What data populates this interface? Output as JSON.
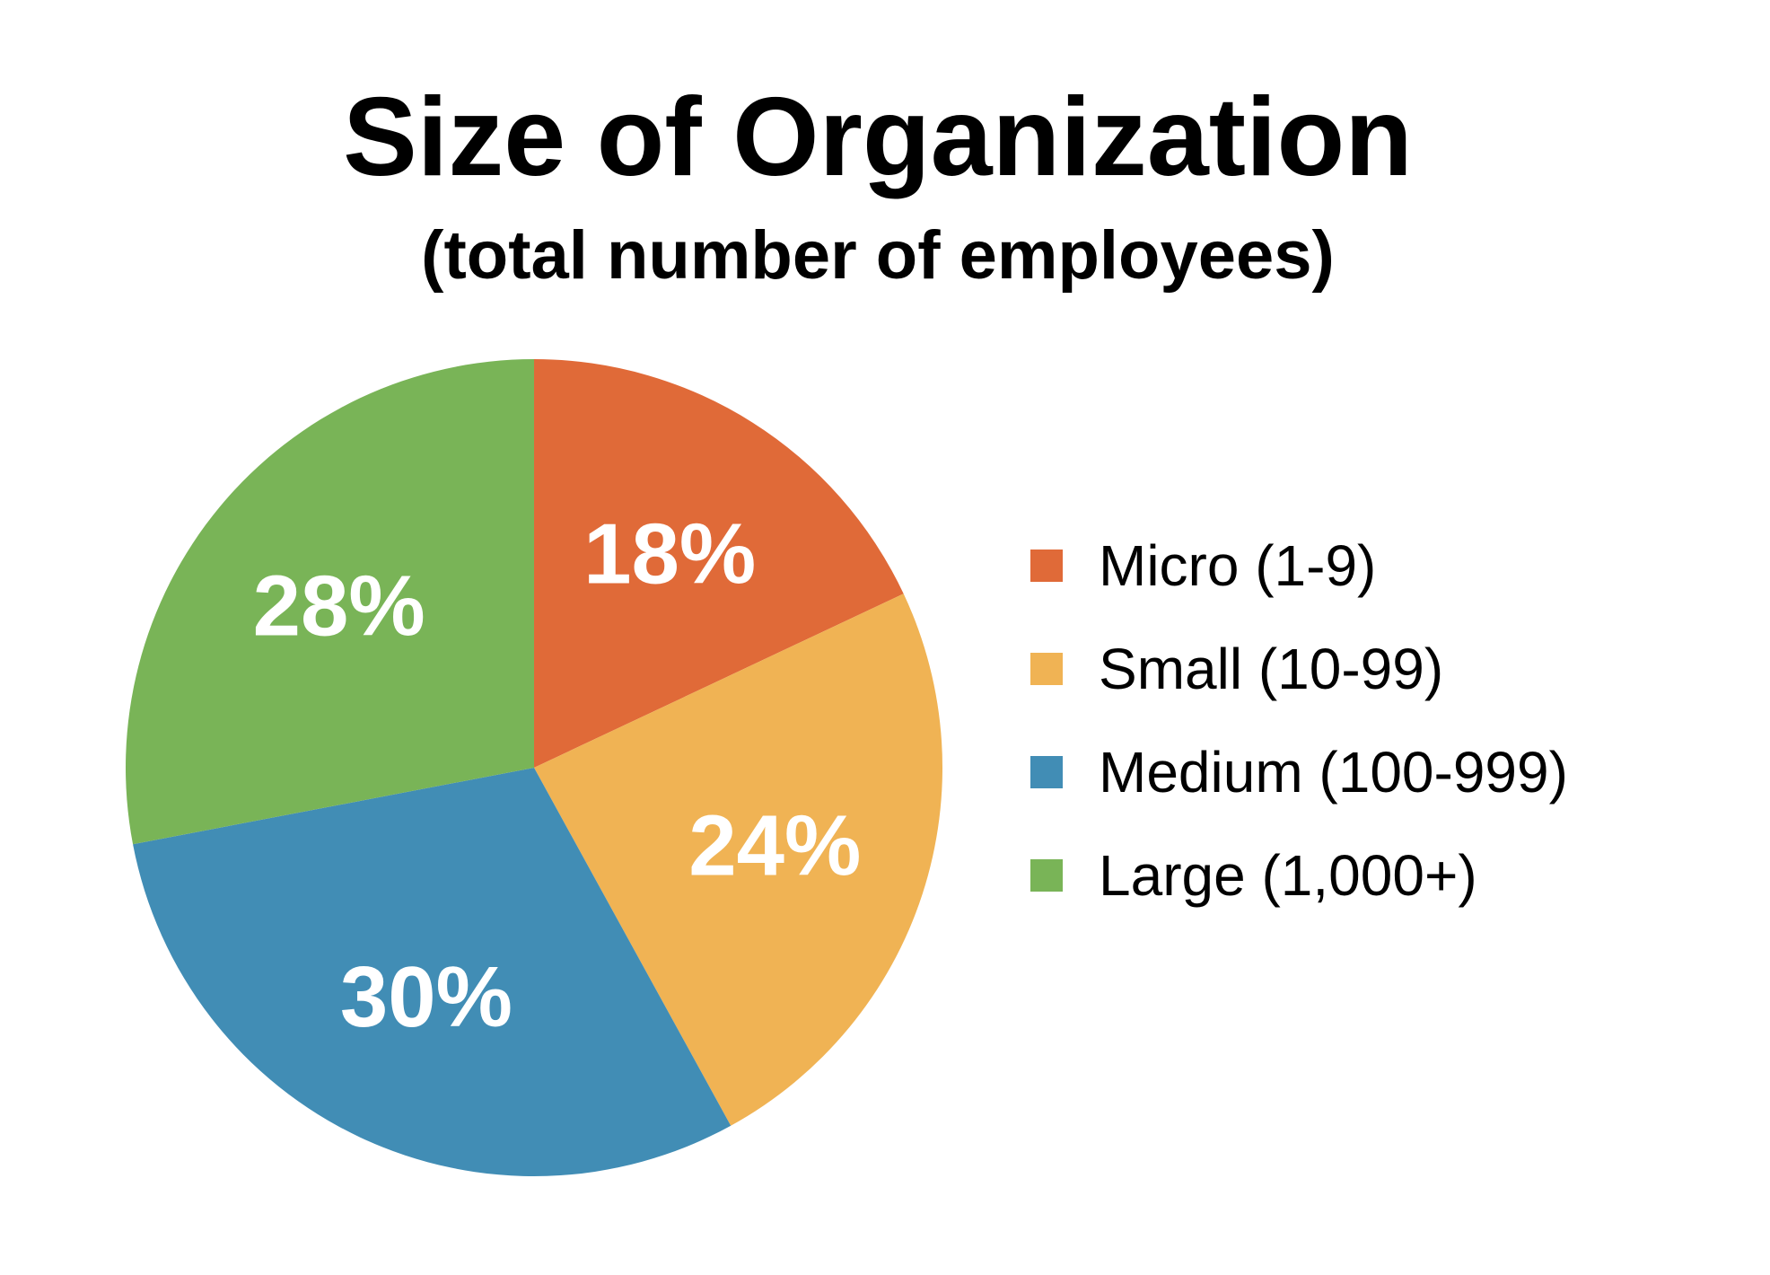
{
  "chart_data": {
    "type": "pie",
    "title": "Size of Organization",
    "subtitle": "(total number of employees)",
    "categories": [
      "Micro (1-9)",
      "Small (10-99)",
      "Medium (100-999)",
      "Large (1,000+)"
    ],
    "values": [
      18,
      24,
      30,
      28
    ],
    "labels": [
      "18%",
      "24%",
      "30%",
      "28%"
    ],
    "colors": [
      "#E06A38",
      "#F0B354",
      "#418DB5",
      "#79B457"
    ],
    "legend_position": "right",
    "start_angle": "12 o'clock",
    "direction": "clockwise"
  }
}
